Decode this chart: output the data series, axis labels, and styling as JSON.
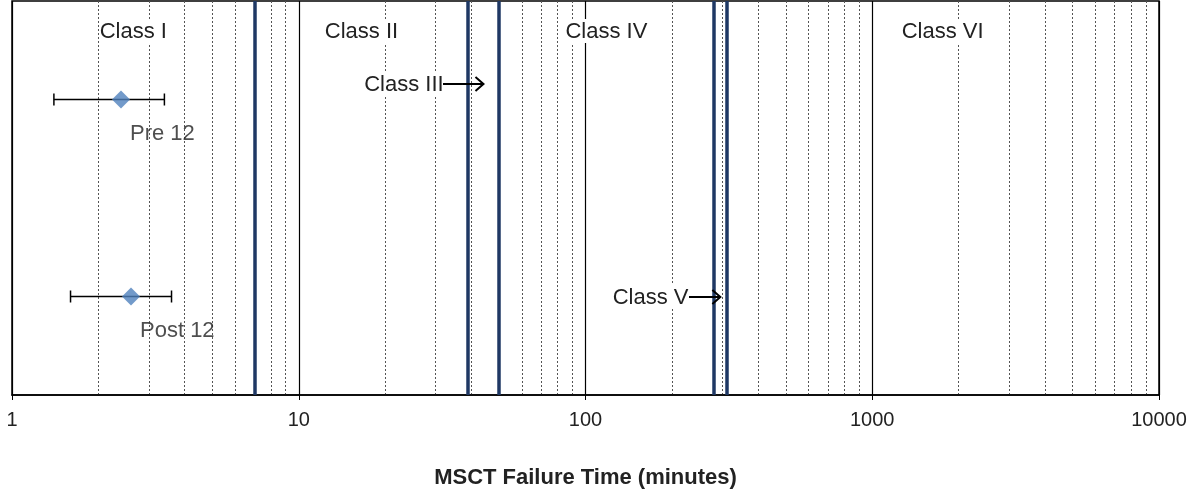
{
  "chart_data": {
    "type": "scatter",
    "orientation": "horizontal",
    "xlabel": "MSCT Failure Time (minutes)",
    "log": "x",
    "xlim": [
      1,
      10000
    ],
    "xticks": [
      1,
      10,
      100,
      1000,
      10000
    ],
    "grid": "x",
    "marker": "diamond",
    "tick_labels": "x",
    "categories": [
      null,
      null
    ],
    "series": [
      {
        "name": "Pre 12",
        "color": "#4f81bd",
        "values": [
          2.4,
          null
        ],
        "errors": [
          [
            1.4,
            3.4
          ],
          null
        ]
      },
      {
        "name": "Post 12",
        "color": "#4f81bd",
        "values": [
          null,
          2.6
        ],
        "errors": [
          null,
          [
            1.6,
            3.6
          ]
        ]
      }
    ],
    "ref_lines": [
      {
        "axis": "x",
        "value": 7,
        "color": "#1f3864"
      },
      {
        "axis": "x",
        "value": 39,
        "color": "#1f3864"
      },
      {
        "axis": "x",
        "value": 50,
        "color": "#1f3864"
      },
      {
        "axis": "x",
        "value": 280,
        "color": "#1f3864"
      },
      {
        "axis": "x",
        "value": 310,
        "color": "#1f3864"
      }
    ],
    "annotations": [
      "Class I",
      "Class II",
      "Class III",
      "Class IV",
      "Class V",
      "Class VI"
    ]
  }
}
